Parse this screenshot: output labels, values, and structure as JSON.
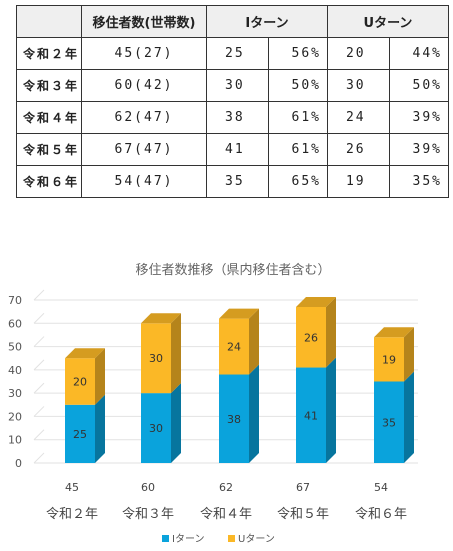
{
  "table": {
    "headers": [
      "",
      "移住者数(世帯数)",
      "Iターン",
      "",
      "Uターン",
      ""
    ],
    "rows": [
      {
        "year": "令和２年",
        "movers": "45(27)",
        "i_count": "25",
        "i_pct": "56%",
        "u_count": "20",
        "u_pct": "44%"
      },
      {
        "year": "令和３年",
        "movers": "60(42)",
        "i_count": "30",
        "i_pct": "50%",
        "u_count": "30",
        "u_pct": "50%"
      },
      {
        "year": "令和４年",
        "movers": "62(47)",
        "i_count": "38",
        "i_pct": "61%",
        "u_count": "24",
        "u_pct": "39%"
      },
      {
        "year": "令和５年",
        "movers": "67(47)",
        "i_count": "41",
        "i_pct": "61%",
        "u_count": "26",
        "u_pct": "39%"
      },
      {
        "year": "令和６年",
        "movers": "54(47)",
        "i_count": "35",
        "i_pct": "65%",
        "u_count": "19",
        "u_pct": "35%"
      }
    ]
  },
  "chart_data": {
    "type": "bar",
    "stacked": true,
    "title": "移住者数推移（県内移住者含む）",
    "categories": [
      "令和２年",
      "令和３年",
      "令和４年",
      "令和５年",
      "令和６年"
    ],
    "totals": [
      "45",
      "60",
      "62",
      "67",
      "54"
    ],
    "series": [
      {
        "name": "Iターン",
        "values": [
          25,
          30,
          38,
          41,
          35
        ],
        "color": "#0aa3dc"
      },
      {
        "name": "Uターン",
        "values": [
          20,
          30,
          24,
          26,
          19
        ],
        "color": "#fbb826"
      }
    ],
    "ylim": [
      0,
      70
    ],
    "yticks": [
      0,
      10,
      20,
      30,
      40,
      50,
      60,
      70
    ],
    "grid": true,
    "legend": "bottom"
  }
}
